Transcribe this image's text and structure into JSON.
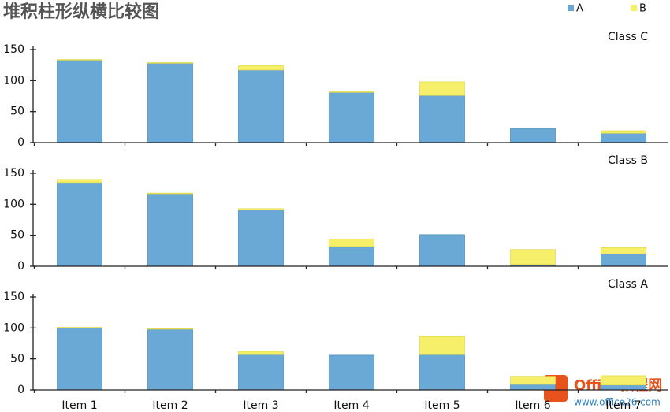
{
  "chart_data": [
    {
      "type": "bar",
      "stacked": true,
      "title": "堆积柱形纵横比较图",
      "subtitle": "Class C",
      "categories": [
        null,
        null,
        null,
        null,
        null,
        null,
        null
      ],
      "series": [
        {
          "name": "A",
          "color": "#6aa8d6",
          "values": [
            133,
            128,
            117,
            81,
            76,
            23,
            15
          ]
        },
        {
          "name": "B",
          "color": "#f6ef6a",
          "values": [
            1,
            1,
            7,
            1,
            22,
            0,
            4
          ]
        }
      ],
      "ylim": [
        0,
        150
      ],
      "yticks": [
        0,
        50,
        100,
        150
      ]
    },
    {
      "type": "bar",
      "stacked": true,
      "subtitle": "Class B",
      "categories": [
        null,
        null,
        null,
        null,
        null,
        null,
        null
      ],
      "series": [
        {
          "name": "A",
          "color": "#6aa8d6",
          "values": [
            135,
            117,
            91,
            32,
            51,
            3,
            20
          ]
        },
        {
          "name": "B",
          "color": "#f6ef6a",
          "values": [
            5,
            1,
            2,
            12,
            0,
            24,
            10
          ]
        }
      ],
      "ylim": [
        0,
        150
      ],
      "yticks": [
        0,
        50,
        100,
        150
      ]
    },
    {
      "type": "bar",
      "stacked": true,
      "subtitle": "Class A",
      "categories": [
        "Item 1",
        "Item 2",
        "Item 3",
        "Item 4",
        "Item 5",
        "Item 6",
        "Item 7"
      ],
      "series": [
        {
          "name": "A",
          "color": "#6aa8d6",
          "values": [
            100,
            98,
            57,
            56,
            57,
            9,
            8
          ]
        },
        {
          "name": "B",
          "color": "#f6ef6a",
          "values": [
            1,
            1,
            5,
            0,
            29,
            13,
            15
          ]
        }
      ],
      "ylim": [
        0,
        150
      ],
      "yticks": [
        0,
        50,
        100,
        150
      ]
    }
  ],
  "watermark": {
    "brand": "Office教程网",
    "url": "www.office26.com"
  }
}
